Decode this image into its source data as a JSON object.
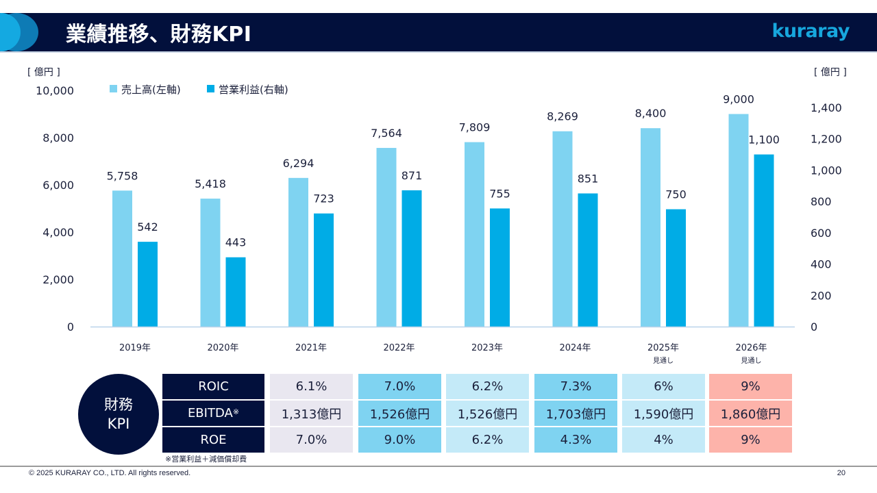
{
  "header": {
    "title": "業績推移、財務KPI",
    "logo": "kuraray"
  },
  "chart_data": {
    "type": "bar",
    "title": "",
    "categories": [
      "2019年",
      "2020年",
      "2021年",
      "2022年",
      "2023年",
      "2024年",
      "2025年",
      "2026年"
    ],
    "category_sublabels": [
      "",
      "",
      "",
      "",
      "",
      "",
      "見通し",
      "見通し"
    ],
    "series": [
      {
        "name": "売上高(左軸)",
        "axis": "left",
        "color": "#7fd3f1",
        "values": [
          5758,
          5418,
          6294,
          7564,
          7809,
          8269,
          8400,
          9000
        ],
        "labels": [
          "5,758",
          "5,418",
          "6,294",
          "7,564",
          "7,809",
          "8,269",
          "8,400",
          "9,000"
        ]
      },
      {
        "name": "営業利益(右軸)",
        "axis": "right",
        "color": "#00ace6",
        "values": [
          542,
          443,
          723,
          871,
          755,
          851,
          750,
          1100
        ],
        "labels": [
          "542",
          "443",
          "723",
          "871",
          "755",
          "851",
          "750",
          "1,100"
        ]
      }
    ],
    "left_axis": {
      "unit": "[ 億円 ]",
      "ylim": [
        0,
        10000
      ],
      "ticks": [
        0,
        2000,
        4000,
        6000,
        8000,
        10000
      ],
      "tick_labels": [
        "0",
        "2,000",
        "4,000",
        "6,000",
        "8,000",
        "10,000"
      ]
    },
    "right_axis": {
      "unit": "[ 億円 ]",
      "ylim": [
        0,
        1400
      ],
      "ticks": [
        0,
        200,
        400,
        600,
        800,
        1000,
        1200,
        1400
      ],
      "tick_labels": [
        "0",
        "200",
        "400",
        "600",
        "800",
        "1,000",
        "1,200",
        "1,400"
      ]
    },
    "legend_position": "top-left",
    "grid": false
  },
  "kpi": {
    "title_line1": "財務",
    "title_line2": "KPI",
    "rows": [
      {
        "label": "ROIC",
        "mark": "",
        "values": [
          "6.1%",
          "7.0%",
          "6.2%",
          "7.3%",
          "6%",
          "9%"
        ]
      },
      {
        "label": "EBITDA",
        "mark": "※",
        "values": [
          "1,313億円",
          "1,526億円",
          "1,526億円",
          "1,703億円",
          "1,590億円",
          "1,860億円"
        ]
      },
      {
        "label": "ROE",
        "mark": "",
        "values": [
          "7.0%",
          "9.0%",
          "6.2%",
          "4.3%",
          "4%",
          "9%"
        ]
      }
    ],
    "column_colors": [
      "#e9e7f0",
      "#7fd3f1",
      "#c4eaf8",
      "#7fd3f1",
      "#c4eaf8",
      "#fdb3aa"
    ],
    "note": "※営業利益＋減価償却費"
  },
  "footer": {
    "copyright": "© 2025 KURARAY CO., LTD. All rights reserved.",
    "page": "20"
  }
}
